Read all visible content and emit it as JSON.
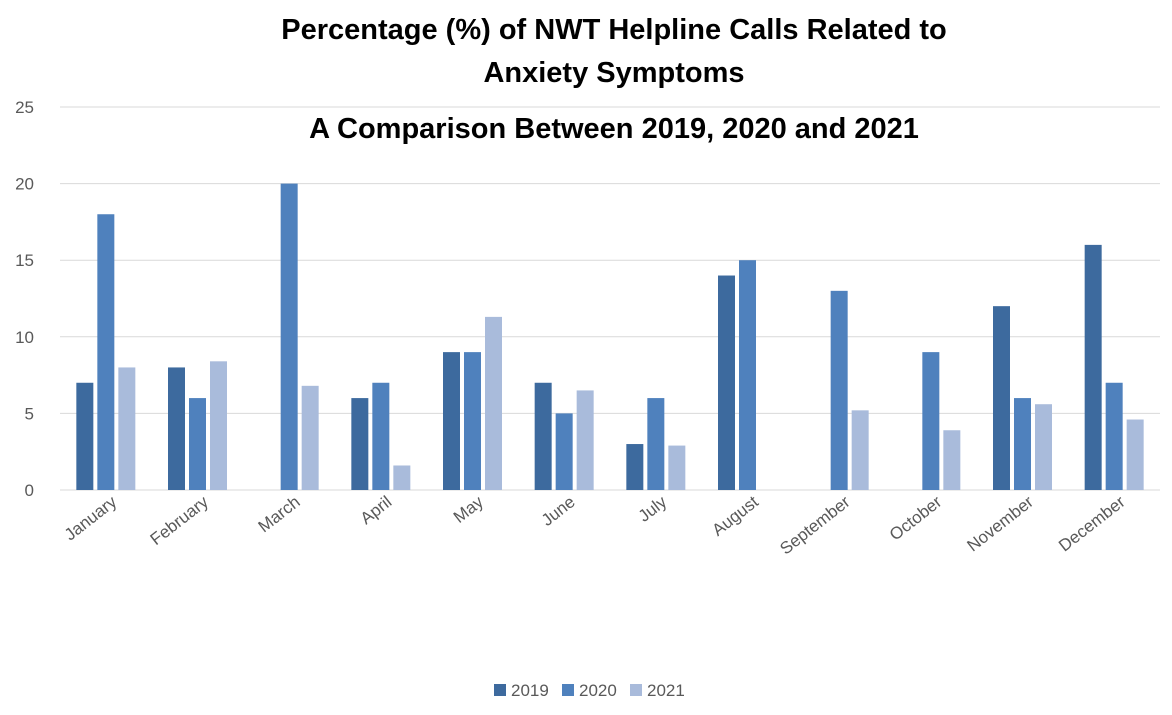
{
  "chart_data": {
    "type": "bar",
    "title": [
      "Percentage (%) of NWT Helpline Calls Related to",
      "Anxiety Symptoms",
      "A Comparison Between 2019, 2020 and 2021"
    ],
    "xlabel": "",
    "ylabel": "",
    "ylim": [
      0,
      25
    ],
    "yticks": [
      "0",
      "5",
      "10",
      "15",
      "20",
      "25"
    ],
    "grid": true,
    "legend_position": "bottom",
    "categories": [
      "January",
      "February",
      "March",
      "April",
      "May",
      "June",
      "July",
      "August",
      "September",
      "October",
      "November",
      "December"
    ],
    "series": [
      {
        "name": "2019",
        "color": "#3d6a9e",
        "values": [
          7,
          8,
          null,
          6,
          9,
          7,
          3,
          14,
          null,
          null,
          12,
          16
        ]
      },
      {
        "name": "2020",
        "color": "#4f81bd",
        "values": [
          18,
          6,
          20,
          7,
          9,
          5,
          6,
          15,
          13,
          9,
          6,
          7
        ]
      },
      {
        "name": "2021",
        "color": "#a9bbdb",
        "values": [
          8,
          8.4,
          6.8,
          1.6,
          11.3,
          6.5,
          2.9,
          null,
          5.2,
          3.9,
          5.6,
          4.6
        ]
      }
    ]
  }
}
